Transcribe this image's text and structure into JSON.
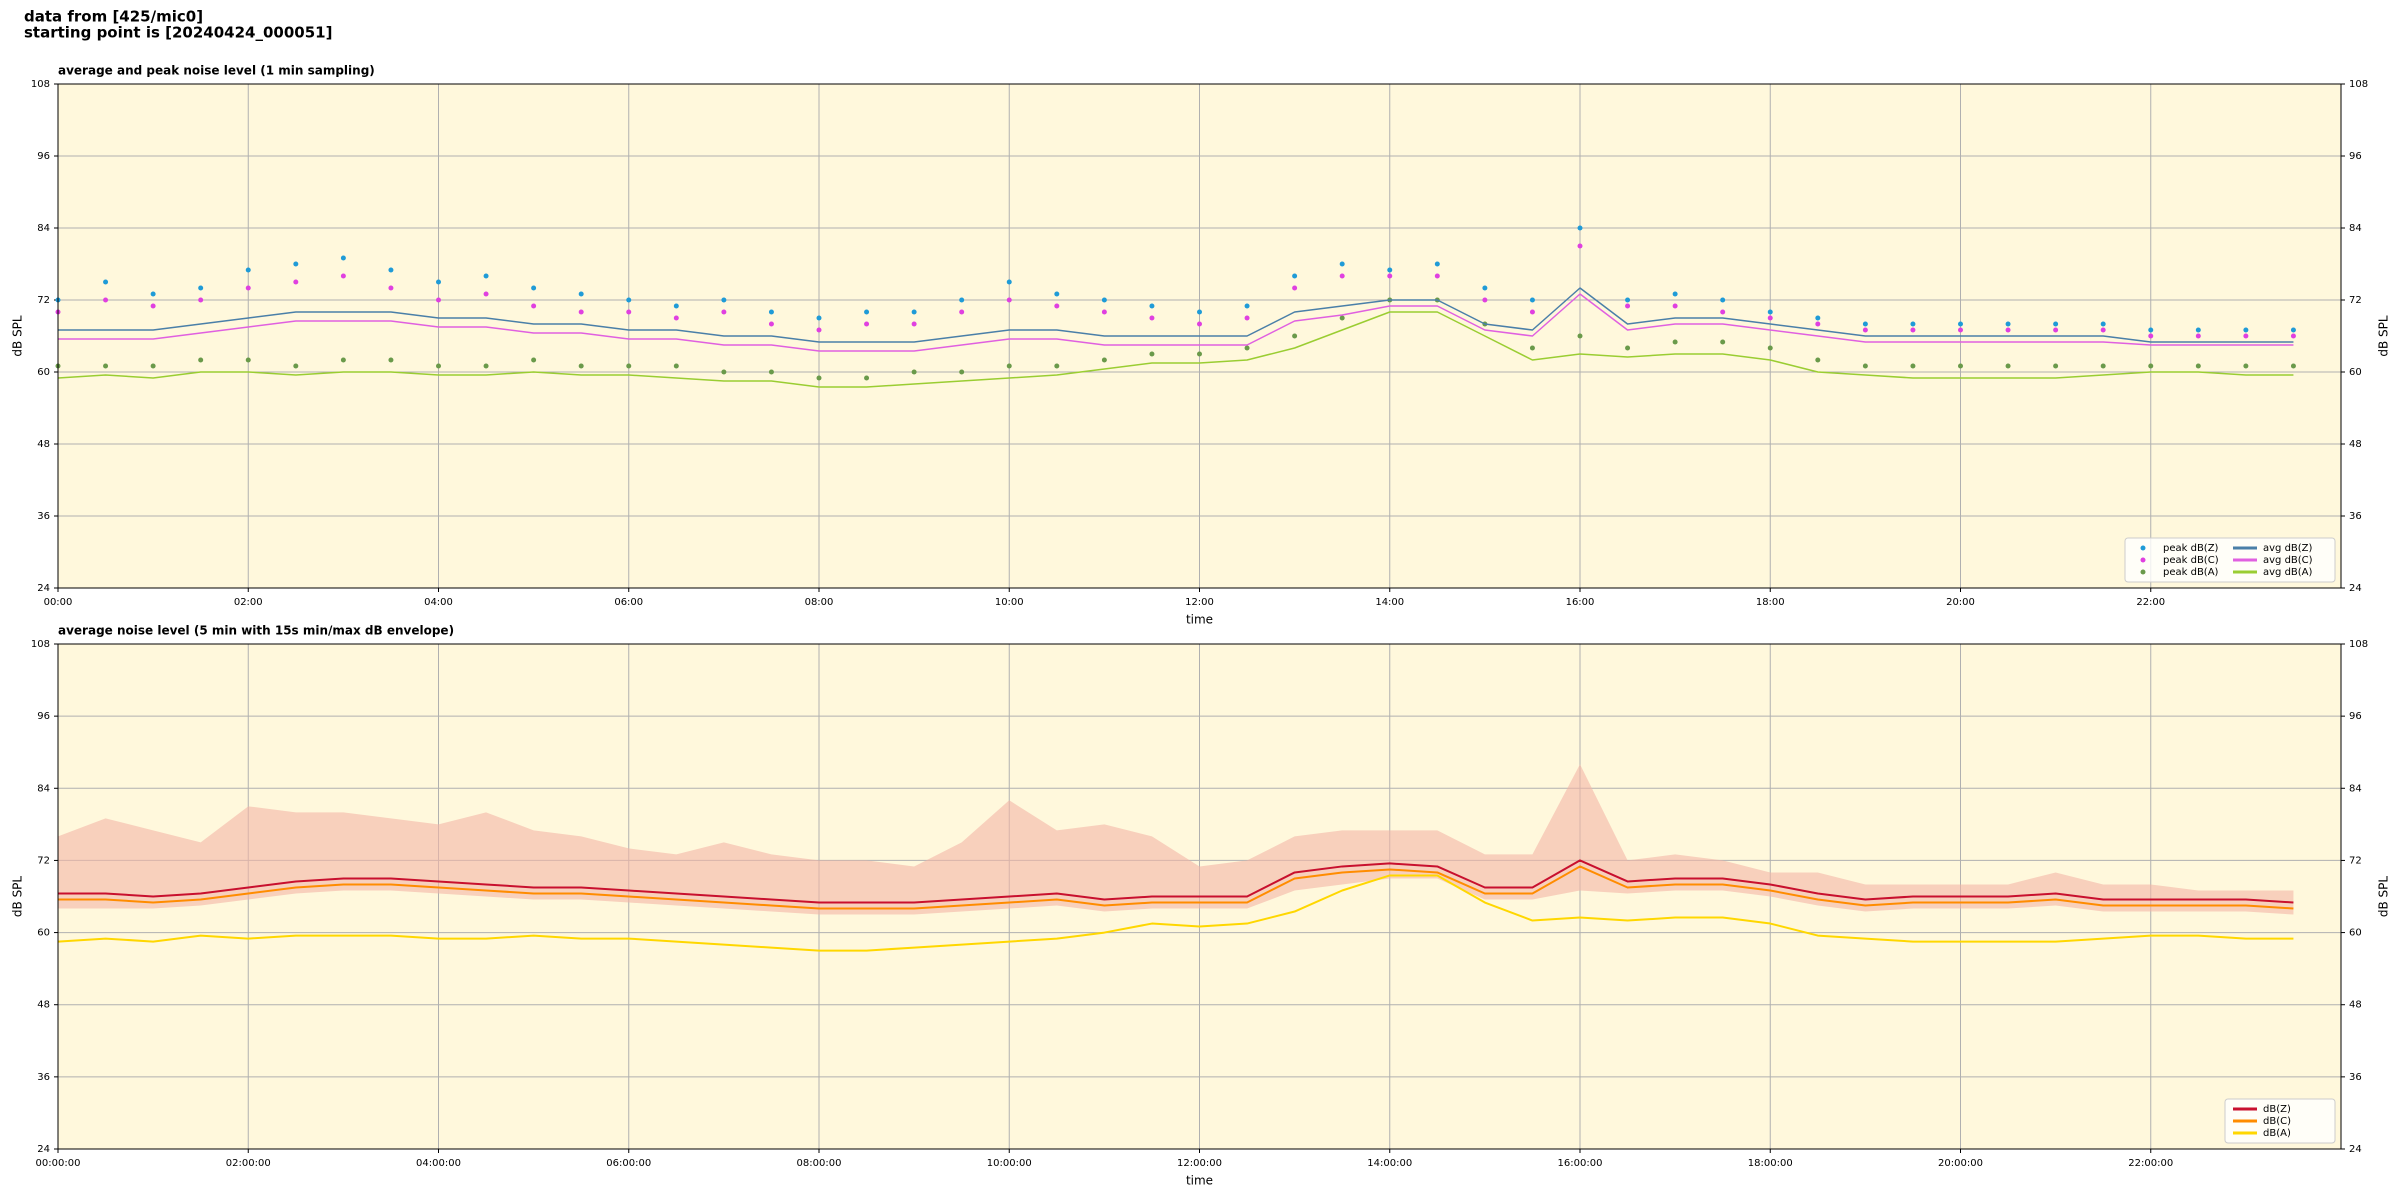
{
  "header": [
    "data from [425/mic0]",
    "starting point is [20240424_000051]"
  ],
  "chart_data": [
    {
      "type": "line",
      "title": "average and peak noise level (1 min sampling)",
      "xlabel": "time",
      "ylabel": "dB SPL",
      "background": "#fff8dc",
      "grid": true,
      "legend": {
        "loc": "lower right",
        "ncol": 2
      },
      "xlim": [
        0,
        24
      ],
      "ylim": [
        24,
        108
      ],
      "xticks": [
        {
          "value": 0,
          "label": "00:00"
        },
        {
          "value": 2,
          "label": "02:00"
        },
        {
          "value": 4,
          "label": "04:00"
        },
        {
          "value": 6,
          "label": "06:00"
        },
        {
          "value": 8,
          "label": "08:00"
        },
        {
          "value": 10,
          "label": "10:00"
        },
        {
          "value": 12,
          "label": "12:00"
        },
        {
          "value": 14,
          "label": "14:00"
        },
        {
          "value": 16,
          "label": "16:00"
        },
        {
          "value": 18,
          "label": "18:00"
        },
        {
          "value": 20,
          "label": "20:00"
        },
        {
          "value": 22,
          "label": "22:00"
        }
      ],
      "yticks": [
        24,
        36,
        48,
        60,
        72,
        84,
        96,
        108
      ],
      "x": [
        0,
        0.5,
        1,
        1.5,
        2,
        2.5,
        3,
        3.5,
        4,
        4.5,
        5,
        5.5,
        6,
        6.5,
        7,
        7.5,
        8,
        8.5,
        9,
        9.5,
        10,
        10.5,
        11,
        11.5,
        12,
        12.5,
        13,
        13.5,
        14,
        14.5,
        15,
        15.5,
        16,
        16.5,
        17,
        17.5,
        18,
        18.5,
        19,
        19.5,
        20,
        20.5,
        21,
        21.5,
        22,
        22.5,
        23,
        23.5
      ],
      "series": [
        {
          "name": "peak dB(Z)",
          "kind": "scatter",
          "color": "#1f9bd7",
          "values": [
            72,
            75,
            73,
            74,
            77,
            78,
            79,
            77,
            75,
            76,
            74,
            73,
            72,
            71,
            72,
            70,
            69,
            70,
            70,
            72,
            75,
            73,
            72,
            71,
            70,
            71,
            76,
            78,
            77,
            78,
            74,
            72,
            84,
            72,
            73,
            72,
            70,
            69,
            68,
            68,
            68,
            68,
            68,
            68,
            67,
            67,
            67,
            67
          ]
        },
        {
          "name": "peak dB(C)",
          "kind": "scatter",
          "color": "#e040e0",
          "values": [
            70,
            72,
            71,
            72,
            74,
            75,
            76,
            74,
            72,
            73,
            71,
            70,
            70,
            69,
            70,
            68,
            67,
            68,
            68,
            70,
            72,
            71,
            70,
            69,
            68,
            69,
            74,
            76,
            76,
            76,
            72,
            70,
            81,
            71,
            71,
            70,
            69,
            68,
            67,
            67,
            67,
            67,
            67,
            67,
            66,
            66,
            66,
            66
          ]
        },
        {
          "name": "peak dB(A)",
          "kind": "scatter",
          "color": "#6a9a4a",
          "values": [
            61,
            61,
            61,
            62,
            62,
            61,
            62,
            62,
            61,
            61,
            62,
            61,
            61,
            61,
            60,
            60,
            59,
            59,
            60,
            60,
            61,
            61,
            62,
            63,
            63,
            64,
            66,
            69,
            72,
            72,
            68,
            64,
            66,
            64,
            65,
            65,
            64,
            62,
            61,
            61,
            61,
            61,
            61,
            61,
            61,
            61,
            61,
            61
          ]
        },
        {
          "name": "avg dB(Z)",
          "kind": "line",
          "color": "#4a7fa8",
          "values": [
            67,
            67,
            67,
            68,
            69,
            70,
            70,
            70,
            69,
            69,
            68,
            68,
            67,
            67,
            66,
            66,
            65,
            65,
            65,
            66,
            67,
            67,
            66,
            66,
            66,
            66,
            70,
            71,
            72,
            72,
            68,
            67,
            74,
            68,
            69,
            69,
            68,
            67,
            66,
            66,
            66,
            66,
            66,
            66,
            65,
            65,
            65,
            65
          ]
        },
        {
          "name": "avg dB(C)",
          "kind": "line",
          "color": "#e060e0",
          "values": [
            65.5,
            65.5,
            65.5,
            66.5,
            67.5,
            68.5,
            68.5,
            68.5,
            67.5,
            67.5,
            66.5,
            66.5,
            65.5,
            65.5,
            64.5,
            64.5,
            63.5,
            63.5,
            63.5,
            64.5,
            65.5,
            65.5,
            64.5,
            64.5,
            64.5,
            64.5,
            68.5,
            69.5,
            71,
            71,
            67,
            66,
            73,
            67,
            68,
            68,
            67,
            66,
            65,
            65,
            65,
            65,
            65,
            65,
            64.5,
            64.5,
            64.5,
            64.5
          ]
        },
        {
          "name": "avg dB(A)",
          "kind": "line",
          "color": "#9acd32",
          "values": [
            59,
            59.5,
            59,
            60,
            60,
            59.5,
            60,
            60,
            59.5,
            59.5,
            60,
            59.5,
            59.5,
            59,
            58.5,
            58.5,
            57.5,
            57.5,
            58,
            58.5,
            59,
            59.5,
            60.5,
            61.5,
            61.5,
            62,
            64,
            67,
            70,
            70,
            66,
            62,
            63,
            62.5,
            63,
            63,
            62,
            60,
            59.5,
            59,
            59,
            59,
            59,
            59.5,
            60,
            60,
            59.5,
            59.5
          ]
        }
      ]
    },
    {
      "type": "line",
      "title": "average noise level (5 min with 15s min/max dB envelope)",
      "xlabel": "time",
      "ylabel": "dB SPL",
      "background": "#fff8dc",
      "grid": true,
      "legend": {
        "loc": "lower right",
        "ncol": 1
      },
      "xlim": [
        0,
        24
      ],
      "ylim": [
        24,
        108
      ],
      "xticks": [
        {
          "value": 0,
          "label": "00:00:00"
        },
        {
          "value": 2,
          "label": "02:00:00"
        },
        {
          "value": 4,
          "label": "04:00:00"
        },
        {
          "value": 6,
          "label": "06:00:00"
        },
        {
          "value": 8,
          "label": "08:00:00"
        },
        {
          "value": 10,
          "label": "10:00:00"
        },
        {
          "value": 12,
          "label": "12:00:00"
        },
        {
          "value": 14,
          "label": "14:00:00"
        },
        {
          "value": 16,
          "label": "16:00:00"
        },
        {
          "value": 18,
          "label": "18:00:00"
        },
        {
          "value": 20,
          "label": "20:00:00"
        },
        {
          "value": 22,
          "label": "22:00:00"
        }
      ],
      "yticks": [
        24,
        36,
        48,
        60,
        72,
        84,
        96,
        108
      ],
      "x": [
        0,
        0.5,
        1,
        1.5,
        2,
        2.5,
        3,
        3.5,
        4,
        4.5,
        5,
        5.5,
        6,
        6.5,
        7,
        7.5,
        8,
        8.5,
        9,
        9.5,
        10,
        10.5,
        11,
        11.5,
        12,
        12.5,
        13,
        13.5,
        14,
        14.5,
        15,
        15.5,
        16,
        16.5,
        17,
        17.5,
        18,
        18.5,
        19,
        19.5,
        20,
        20.5,
        21,
        21.5,
        22,
        22.5,
        23,
        23.5
      ],
      "envelope": {
        "color": "#f4b6a6",
        "high": [
          76,
          79,
          77,
          75,
          81,
          80,
          80,
          79,
          78,
          80,
          77,
          76,
          74,
          73,
          75,
          73,
          72,
          72,
          71,
          75,
          82,
          77,
          78,
          76,
          71,
          72,
          76,
          77,
          77,
          77,
          73,
          73,
          88,
          72,
          73,
          72,
          70,
          70,
          68,
          68,
          68,
          68,
          70,
          68,
          68,
          67,
          67,
          67
        ],
        "low": [
          64,
          64,
          64,
          64.5,
          65.5,
          66.5,
          67,
          67,
          66.5,
          66,
          65.5,
          65.5,
          65,
          64.5,
          64,
          63.5,
          63,
          63,
          63,
          63.5,
          64,
          64.5,
          63.5,
          64,
          64,
          64,
          67,
          68,
          69,
          69,
          65.5,
          65.5,
          67,
          66.5,
          67,
          67,
          66,
          64.5,
          63.5,
          64,
          64,
          64,
          64.5,
          63.5,
          63.5,
          63.5,
          63.5,
          63
        ]
      },
      "series": [
        {
          "name": "dB(Z)",
          "kind": "line",
          "color": "#c8102e",
          "values": [
            66.5,
            66.5,
            66,
            66.5,
            67.5,
            68.5,
            69,
            69,
            68.5,
            68,
            67.5,
            67.5,
            67,
            66.5,
            66,
            65.5,
            65,
            65,
            65,
            65.5,
            66,
            66.5,
            65.5,
            66,
            66,
            66,
            70,
            71,
            71.5,
            71,
            67.5,
            67.5,
            72,
            68.5,
            69,
            69,
            68,
            66.5,
            65.5,
            66,
            66,
            66,
            66.5,
            65.5,
            65.5,
            65.5,
            65.5,
            65
          ]
        },
        {
          "name": "dB(C)",
          "kind": "line",
          "color": "#ff8c00",
          "values": [
            65.5,
            65.5,
            65,
            65.5,
            66.5,
            67.5,
            68,
            68,
            67.5,
            67,
            66.5,
            66.5,
            66,
            65.5,
            65,
            64.5,
            64,
            64,
            64,
            64.5,
            65,
            65.5,
            64.5,
            65,
            65,
            65,
            69,
            70,
            70.5,
            70,
            66.5,
            66.5,
            71,
            67.5,
            68,
            68,
            67,
            65.5,
            64.5,
            65,
            65,
            65,
            65.5,
            64.5,
            64.5,
            64.5,
            64.5,
            64
          ]
        },
        {
          "name": "dB(A)",
          "kind": "line",
          "color": "#ffd700",
          "values": [
            58.5,
            59,
            58.5,
            59.5,
            59,
            59.5,
            59.5,
            59.5,
            59,
            59,
            59.5,
            59,
            59,
            58.5,
            58,
            57.5,
            57,
            57,
            57.5,
            58,
            58.5,
            59,
            60,
            61.5,
            61,
            61.5,
            63.5,
            67,
            69.5,
            69.5,
            65,
            62,
            62.5,
            62,
            62.5,
            62.5,
            61.5,
            59.5,
            59,
            58.5,
            58.5,
            58.5,
            58.5,
            59,
            59.5,
            59.5,
            59,
            59
          ]
        }
      ]
    }
  ]
}
